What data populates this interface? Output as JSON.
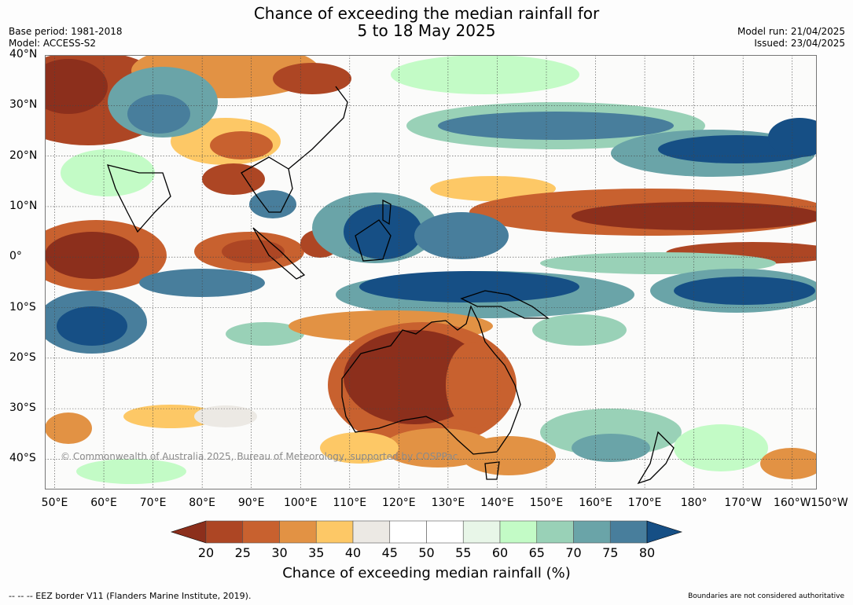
{
  "title": {
    "line1": "Chance of exceeding the median rainfall for",
    "line2": "5 to 18 May 2025"
  },
  "meta": {
    "base_period": "Base period: 1981-2018",
    "model": "Model: ACCESS-S2",
    "model_run": "Model run: 21/04/2025",
    "issued": "Issued: 23/04/2025"
  },
  "map": {
    "projection": "equirectangular",
    "lon_range": [
      48,
      205
    ],
    "lat_range": [
      -46,
      40
    ],
    "lat_labels": [
      "40°N",
      "30°N",
      "20°N",
      "10°N",
      "0°",
      "10°S",
      "20°S",
      "30°S",
      "40°S"
    ],
    "lat_values": [
      40,
      30,
      20,
      10,
      0,
      -10,
      -20,
      -30,
      -40
    ],
    "lon_labels": [
      "50°E",
      "60°E",
      "70°E",
      "80°E",
      "90°E",
      "100°E",
      "110°E",
      "120°E",
      "130°E",
      "140°E",
      "150°E",
      "160°E",
      "170°E",
      "180°",
      "170°W",
      "160°W",
      "150°W"
    ],
    "lon_values": [
      50,
      60,
      70,
      80,
      90,
      100,
      110,
      120,
      130,
      140,
      150,
      160,
      170,
      180,
      190,
      200,
      210
    ],
    "copyright": "© Commonwealth of Australia 2025, Bureau of Meteorology, supported by COSPPac",
    "gridlines": true
  },
  "colorbar": {
    "title": "Chance of exceeding median rainfall (%)",
    "ticks": [
      "20",
      "25",
      "30",
      "35",
      "40",
      "45",
      "50",
      "55",
      "60",
      "65",
      "70",
      "75",
      "80"
    ],
    "colors": [
      "#8c2f1c",
      "#ad4624",
      "#c8612f",
      "#e29244",
      "#fdc866",
      "#ece9e4",
      "#ffffff",
      "#ffffff",
      "#e8f6e8",
      "#c3fbc6",
      "#99d1b7",
      "#6aa4a8",
      "#487e9c",
      "#164f85"
    ],
    "extend": "both"
  },
  "footer": {
    "eez": "--  --  -- EEZ border V11 (Flanders Marine Institute, 2019).",
    "boundaries": "Boundaries are not considered authoritative"
  }
}
